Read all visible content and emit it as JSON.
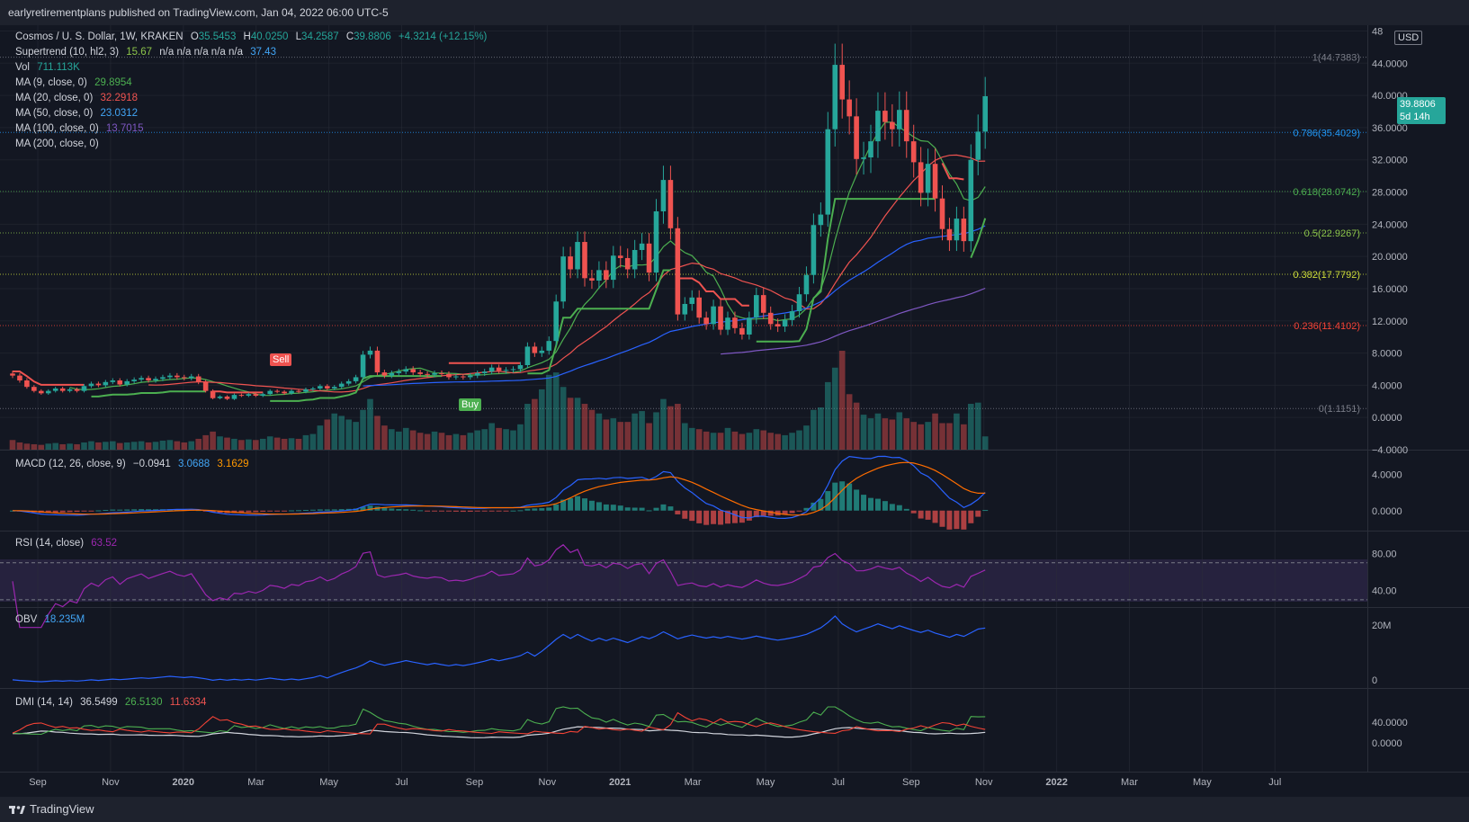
{
  "header": {
    "publisher_line": "earlyretirementplans published on TradingView.com, Jan 04, 2022 06:00 UTC-5"
  },
  "footer": {
    "brand": "TradingView"
  },
  "colors": {
    "bg": "#131722",
    "up": "#26a69a",
    "down": "#ef5350",
    "grid": "#2a2e39",
    "text": "#b2b5be"
  },
  "legend": {
    "symbol": "Cosmos / U. S. Dollar, 1W, KRAKEN",
    "open_label": "O",
    "open": "35.5453",
    "high_label": "H",
    "high": "40.0250",
    "low_label": "L",
    "low": "34.2587",
    "close_label": "C",
    "close": "39.8806",
    "change": "+4.3214 (+12.15%)",
    "supertrend_label": "Supertrend (10, hl2, 3)",
    "supertrend_value": "15.67",
    "supertrend_na": "n/a  n/a  n/a  n/a  n/a",
    "supertrend_value2": "37.43",
    "vol_label": "Vol",
    "vol_value": "711.113K",
    "ma9_label": "MA (9, close, 0)",
    "ma9_value": "29.8954",
    "ma20_label": "MA (20, close, 0)",
    "ma20_value": "32.2918",
    "ma50_label": "MA (50, close, 0)",
    "ma50_value": "23.0312",
    "ma100_label": "MA (100, close, 0)",
    "ma100_value": "13.7015",
    "ma200_label": "MA (200, close, 0)",
    "macd_label": "MACD (12, 26, close, 9)",
    "macd_hist": "−0.0941",
    "macd_value": "3.0688",
    "macd_signal": "3.1629",
    "rsi_label": "RSI (14, close)",
    "rsi_value": "63.52",
    "obv_label": "OBV",
    "obv_value": "18.235M",
    "dmi_label": "DMI (14, 14)",
    "dmi_adx": "36.5499",
    "dmi_plus": "26.5130",
    "dmi_minus": "11.6334"
  },
  "markers": {
    "sell": "Sell",
    "buy": "Buy"
  },
  "price_tag": {
    "price": "39.8806",
    "countdown": "5d 14h",
    "currency": "USD"
  },
  "chart_data": {
    "type": "candlestick",
    "interval": "1W",
    "y_axis_price": [
      "48",
      "44.0000",
      "40.0000",
      "36.0000",
      "32.0000",
      "28.0000",
      "24.0000",
      "20.0000",
      "16.0000",
      "12.0000",
      "8.0000",
      "4.0000",
      "0.0000",
      "−4.0000"
    ],
    "ylim": [
      -4,
      48.5
    ],
    "x_ticks": [
      "Sep",
      "Nov",
      "2020",
      "Mar",
      "May",
      "Jul",
      "Sep",
      "Nov",
      "2021",
      "Mar",
      "May",
      "Jul",
      "Sep",
      "Nov",
      "2022",
      "Mar",
      "May",
      "Jul"
    ],
    "bold_x_ticks": [
      "2020",
      "2021",
      "2022"
    ],
    "fib_levels": [
      {
        "label": "1(44.7383)",
        "price": 44.7383,
        "color": "#787b86"
      },
      {
        "label": "0.786(35.4029)",
        "price": 35.4029,
        "color": "#2196f3"
      },
      {
        "label": "0.618(28.0742)",
        "price": 28.0742,
        "color": "#4caf50"
      },
      {
        "label": "0.5(22.9267)",
        "price": 22.9267,
        "color": "#8bc34a"
      },
      {
        "label": "0.382(17.7792)",
        "price": 17.7792,
        "color": "#cddc39"
      },
      {
        "label": "0.236(11.4102)",
        "price": 11.4102,
        "color": "#f44336"
      },
      {
        "label": "0(1.1151)",
        "price": 1.1151,
        "color": "#787b86"
      }
    ],
    "closes": [
      5.2,
      4.6,
      3.8,
      3.3,
      3.0,
      3.3,
      3.6,
      3.3,
      3.5,
      3.3,
      3.9,
      4.2,
      4.0,
      4.4,
      4.6,
      4.1,
      4.5,
      4.7,
      4.9,
      4.6,
      4.8,
      5.0,
      5.2,
      5.0,
      4.9,
      5.1,
      4.4,
      3.3,
      2.4,
      2.6,
      2.3,
      2.8,
      2.7,
      2.9,
      2.7,
      2.9,
      3.3,
      3.2,
      3.0,
      3.3,
      3.2,
      3.5,
      3.6,
      3.9,
      3.6,
      3.8,
      4.2,
      4.5,
      5.0,
      7.8,
      8.3,
      5.6,
      5.2,
      5.5,
      5.7,
      6.0,
      5.6,
      5.4,
      5.3,
      5.5,
      5.4,
      5.0,
      5.1,
      5.0,
      5.2,
      5.5,
      5.7,
      6.2,
      5.8,
      5.9,
      6.0,
      6.5,
      8.8,
      8.0,
      8.3,
      9.5,
      14.4,
      20.0,
      18.4,
      21.8,
      17.3,
      17.0,
      18.3,
      17.1,
      20.1,
      19.8,
      18.4,
      20.8,
      21.6,
      18.0,
      25.6,
      29.5,
      23.5,
      12.8,
      14.1,
      14.9,
      12.4,
      11.6,
      13.8,
      10.9,
      12.4,
      11.1,
      10.3,
      12.4,
      15.2,
      13.0,
      11.6,
      11.3,
      12.1,
      13.2,
      15.3,
      17.7,
      23.9,
      25.2,
      35.8,
      43.8,
      39.5,
      37.4,
      32.1,
      32.3,
      34.3,
      38.1,
      36.7,
      35.8,
      38.2,
      34.3,
      31.7,
      27.9,
      31.5,
      27.2,
      23.4,
      22.0,
      24.7,
      21.9,
      32.0,
      35.5,
      39.9
    ],
    "volumes": [
      80,
      60,
      50,
      45,
      40,
      50,
      55,
      45,
      50,
      45,
      60,
      70,
      60,
      65,
      70,
      55,
      60,
      65,
      70,
      60,
      65,
      75,
      80,
      70,
      60,
      70,
      90,
      120,
      150,
      110,
      100,
      90,
      80,
      85,
      80,
      90,
      110,
      100,
      90,
      95,
      90,
      120,
      130,
      200,
      250,
      300,
      280,
      250,
      230,
      330,
      420,
      280,
      200,
      170,
      150,
      180,
      160,
      140,
      130,
      150,
      140,
      120,
      130,
      120,
      140,
      160,
      170,
      220,
      180,
      170,
      160,
      210,
      380,
      420,
      500,
      620,
      640,
      520,
      430,
      430,
      380,
      330,
      300,
      250,
      260,
      230,
      230,
      300,
      320,
      220,
      310,
      420,
      360,
      380,
      220,
      180,
      170,
      150,
      140,
      140,
      180,
      150,
      130,
      140,
      170,
      160,
      140,
      130,
      120,
      140,
      160,
      200,
      330,
      350,
      560,
      680,
      820,
      460,
      390,
      290,
      260,
      300,
      260,
      250,
      310,
      260,
      230,
      210,
      230,
      300,
      220,
      220,
      300,
      210,
      380,
      390,
      110
    ]
  }
}
